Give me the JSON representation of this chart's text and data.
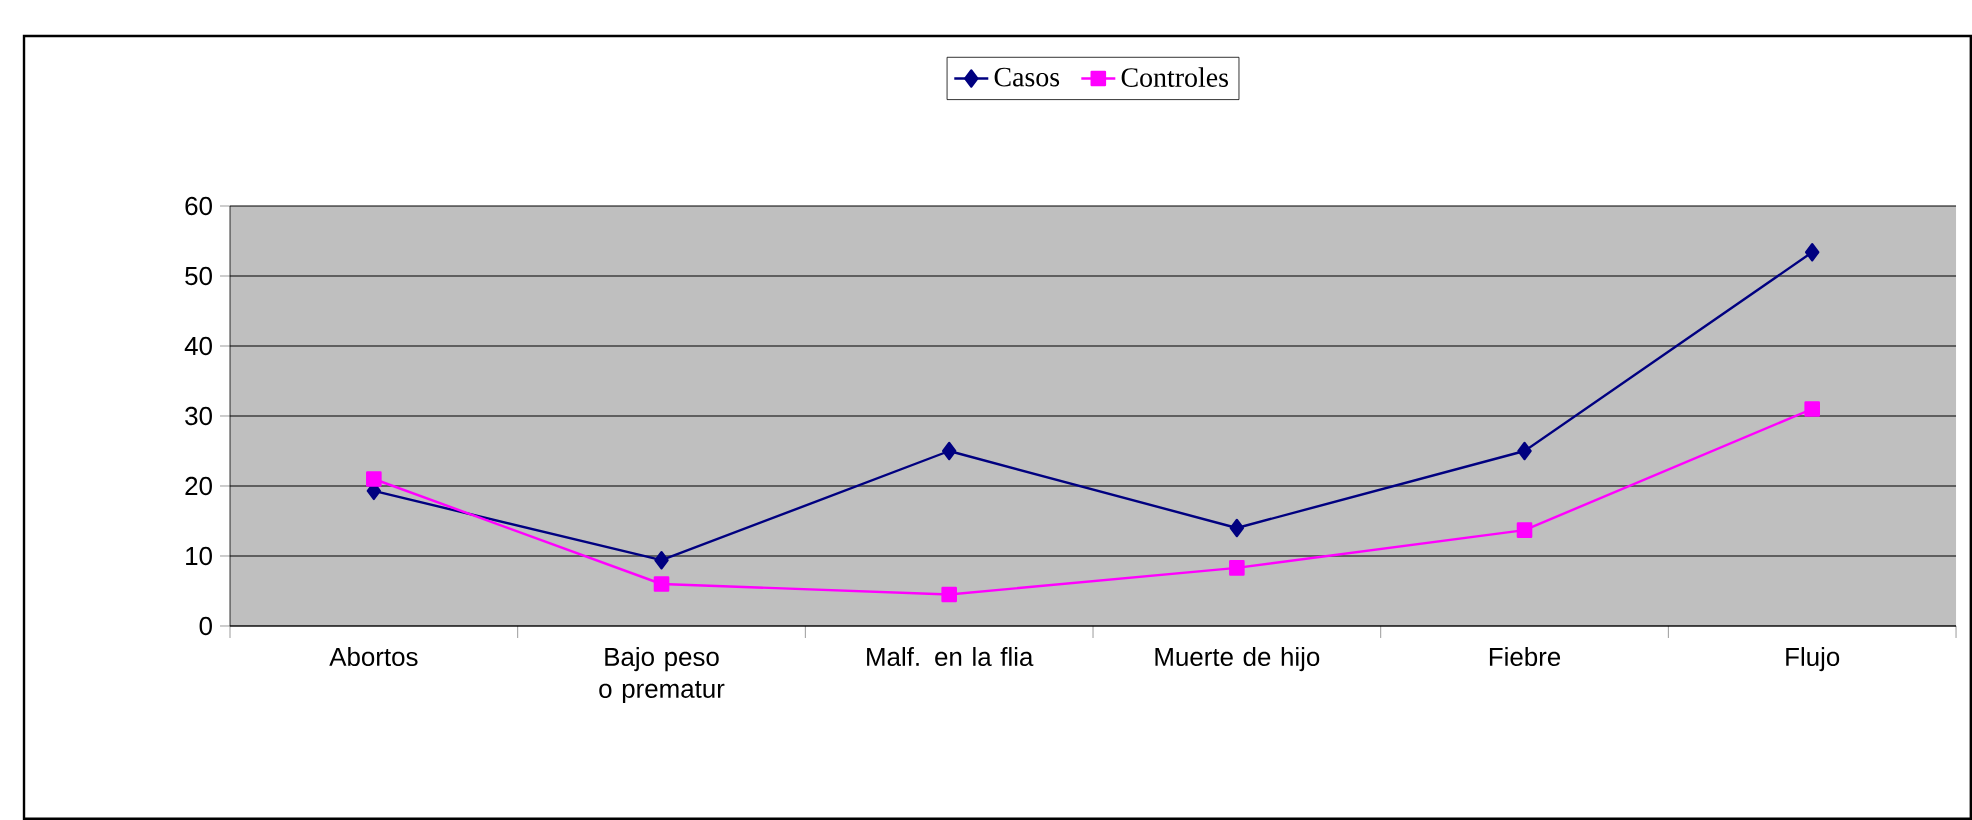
{
  "chart_data": {
    "type": "line",
    "categories": [
      "Abortos",
      "Bajo peso o prematur",
      "Malf. en la flia",
      "Muerte de hijo",
      "Fiebre",
      "Flujo"
    ],
    "series": [
      {
        "name": "Casos",
        "color": "#000080",
        "marker": "diamond",
        "values": [
          19.3,
          9.4,
          25,
          14,
          25,
          53.4
        ]
      },
      {
        "name": "Controles",
        "color": "#ff00ff",
        "marker": "square",
        "values": [
          21,
          6,
          4.5,
          8.3,
          13.7,
          31
        ]
      }
    ],
    "ylim": [
      0,
      60
    ],
    "yticks": [
      0,
      10,
      20,
      30,
      40,
      50,
      60
    ],
    "grid": "y",
    "legend": "top",
    "line_style": "solid"
  }
}
